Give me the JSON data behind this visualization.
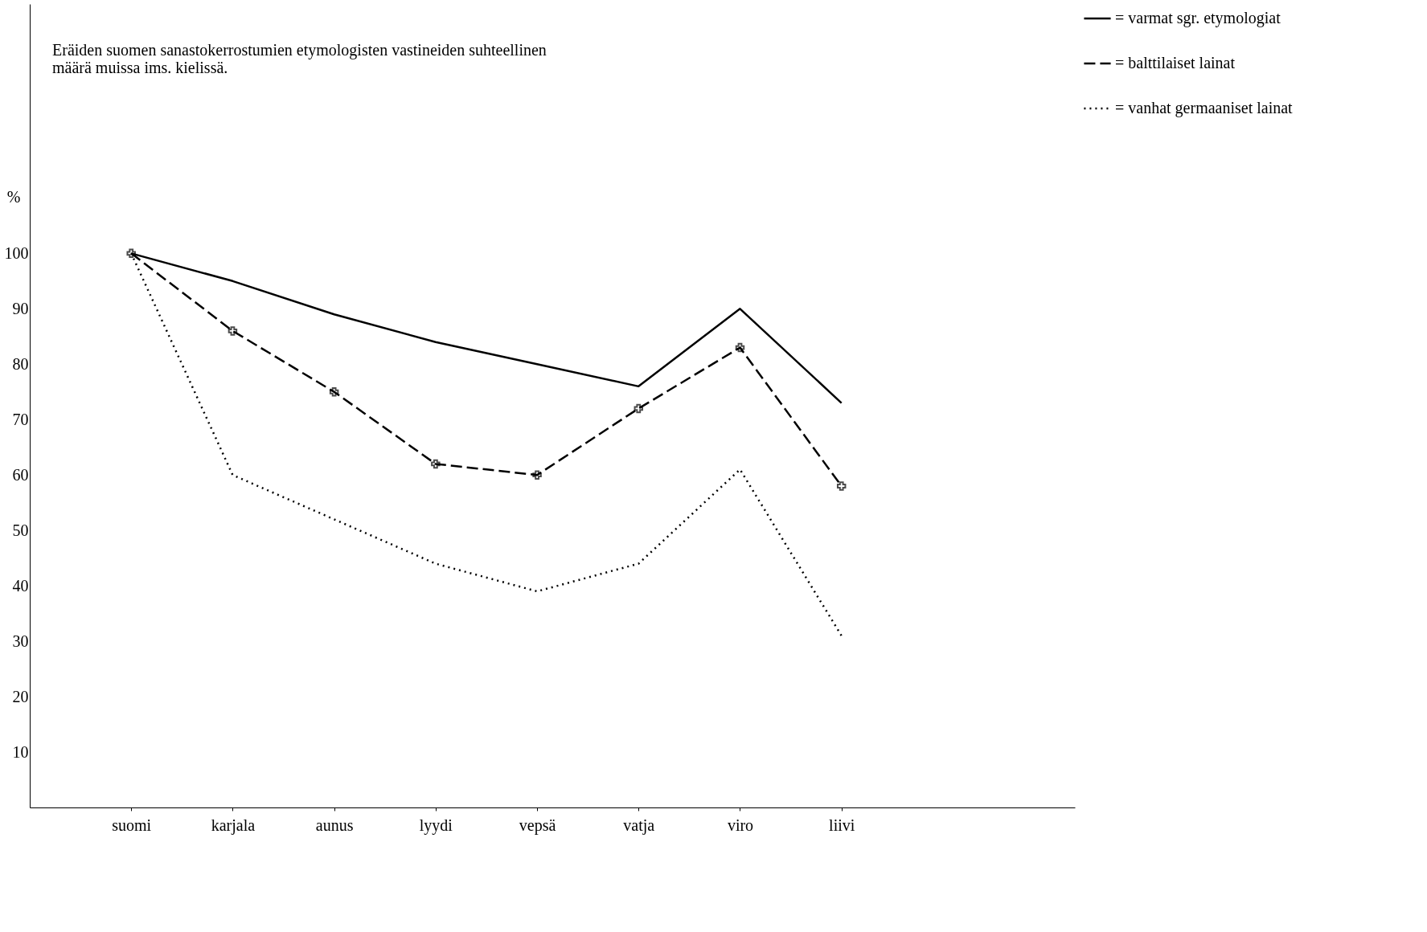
{
  "chart_data": {
    "type": "line",
    "title": "Eräiden suomen sanastokerrostumien etymologisten vastineiden suhteellinen\nmäärä muissa ims. kielissä.",
    "ylabel": "%",
    "categories": [
      "suomi",
      "karjala",
      "aunus",
      "lyydi",
      "vepsä",
      "vatja",
      "viro",
      "liivi"
    ],
    "series": [
      {
        "name": "= varmat sgr. etymologiat",
        "color": "#000000",
        "line_style": "solid",
        "marker": "none",
        "values": [
          100,
          95,
          89,
          84,
          80,
          76,
          90,
          73
        ]
      },
      {
        "name": "= balttilaiset lainat",
        "color": "#000000",
        "line_style": "dashed",
        "marker": "cross",
        "values": [
          100,
          86,
          75,
          62,
          60,
          72,
          83,
          58
        ]
      },
      {
        "name": "= vanhat germaaniset lainat",
        "color": "#000000",
        "line_style": "dotted",
        "marker": "none",
        "values": [
          100,
          60,
          52,
          44,
          39,
          44,
          61,
          31
        ]
      }
    ],
    "ylim": [
      0,
      145
    ],
    "yticks": [
      10,
      20,
      30,
      40,
      50,
      60,
      70,
      80,
      90,
      100
    ],
    "grid": false,
    "legend": "right"
  }
}
